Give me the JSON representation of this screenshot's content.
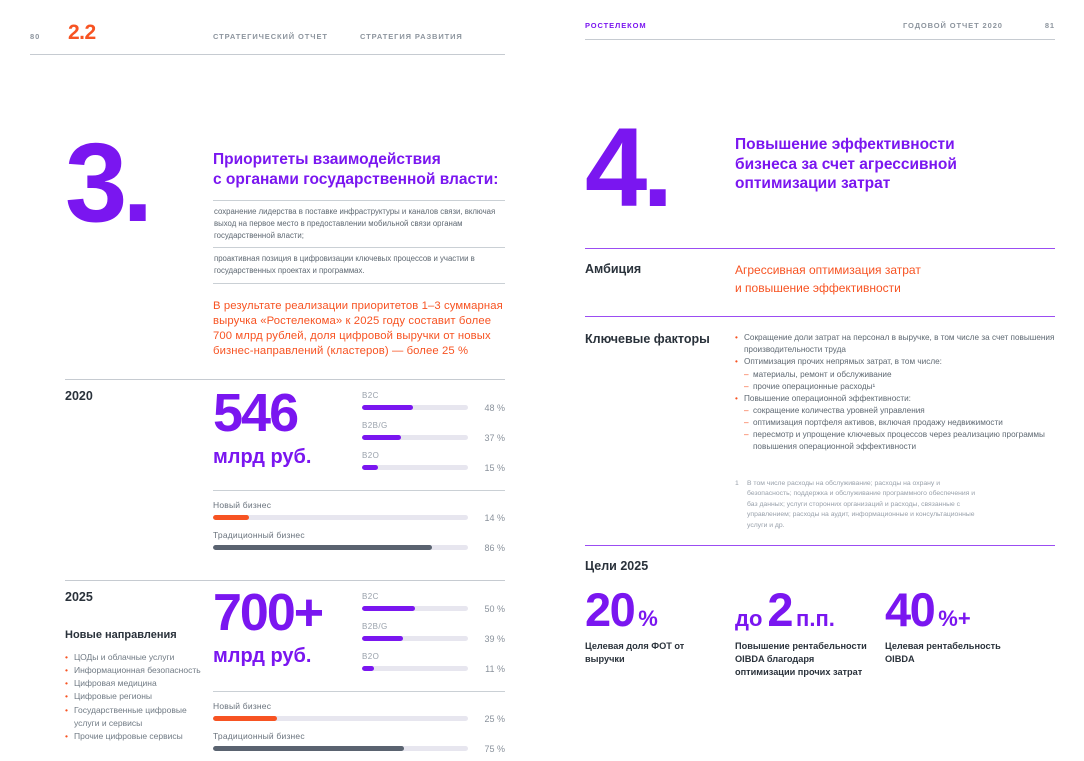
{
  "accent": {
    "purple": "#7A16F0",
    "purple-line": "#9B4DF2",
    "orange": "#F75322",
    "dark": "#2A323B",
    "slate": "#5A6370",
    "track": "#E7E6EF",
    "rule-gray": "#C6CBD1",
    "text-gray": "#5E6872",
    "label-gray": "#99A1AB"
  },
  "left_page": {
    "header": {
      "page_num": "80",
      "section_num": "2.2",
      "crumbs": [
        "СТРАТЕГИЧЕСКИЙ ОТЧЕТ",
        "СТРАТЕГИЯ РАЗВИТИЯ"
      ]
    },
    "priority": {
      "numeral": "3.",
      "title": "Приоритеты взаимодействия\nс органами государственной власти:",
      "items": [
        "сохранение лидерства в поставке инфраструктуры и каналов связи, включая выход на первое место в предоставлении мобильной связи органам государственной власти;",
        "проактивная позиция в цифровизации ключевых процессов и участии в государственных проектах и программах."
      ],
      "result_text": "В результате реализации приоритетов 1–3 суммарная выручка «Ростелекома» к 2025 году составит более 700 млрд рублей, доля цифровой выручки от новых бизнес-направлений (кластеров) — более 25 %"
    },
    "y2020": {
      "label": "2020",
      "value": "546",
      "unit": "млрд руб.",
      "segments": [
        {
          "label": "B2C",
          "pct": 48,
          "value": "48 %",
          "color": "purple"
        },
        {
          "label": "B2B/G",
          "pct": 37,
          "value": "37 %",
          "color": "purple"
        },
        {
          "label": "B2O",
          "pct": 15,
          "value": "15 %",
          "color": "purple"
        }
      ],
      "business": [
        {
          "label": "Новый бизнес",
          "pct": 14,
          "value": "14 %",
          "color": "orange"
        },
        {
          "label": "Традиционный бизнес",
          "pct": 86,
          "value": "86 %",
          "color": "slate"
        }
      ]
    },
    "y2025": {
      "label": "2025",
      "bullet_char": "•",
      "directions_title": "Новые направления",
      "directions": [
        "ЦОДы и облачные услуги",
        "Информационная безопасность",
        "Цифровая медицина",
        "Цифровые регионы",
        "Государственные цифровые услуги и сервисы",
        "Прочие цифровые сервисы"
      ],
      "value": "700+",
      "unit": "млрд руб.",
      "segments": [
        {
          "label": "B2C",
          "pct": 50,
          "value": "50 %",
          "color": "purple"
        },
        {
          "label": "B2B/G",
          "pct": 39,
          "value": "39 %",
          "color": "purple"
        },
        {
          "label": "B2O",
          "pct": 11,
          "value": "11 %",
          "color": "purple"
        }
      ],
      "business": [
        {
          "label": "Новый бизнес",
          "pct": 25,
          "value": "25 %",
          "color": "orange"
        },
        {
          "label": "Традиционный бизнес",
          "pct": 75,
          "value": "75 %",
          "color": "slate"
        }
      ]
    }
  },
  "right_page": {
    "header": {
      "brand": "РОСТЕЛЕКОМ",
      "report": "ГОДОВОЙ ОТЧЕТ 2020",
      "page_num": "81"
    },
    "efficiency": {
      "numeral": "4.",
      "title": "Повышение эффективности\nбизнеса за счет агрессивной\nоптимизации затрат",
      "ambition_label": "Амбиция",
      "ambition_text": "Агрессивная оптимизация затрат\nи повышение эффективности",
      "factors_label": "Ключевые факторы",
      "factors": [
        {
          "marker": "•",
          "kind": "bullet",
          "text": "Сокращение доли затрат на персонал в выручке, в том числе за счет повышения производительности труда"
        },
        {
          "marker": "•",
          "kind": "bullet",
          "text": "Оптимизация прочих непрямых затрат, в том числе:"
        },
        {
          "marker": "–",
          "kind": "dash",
          "text": "материалы, ремонт и обслуживание"
        },
        {
          "marker": "–",
          "kind": "dash",
          "text": "прочие операционные расходы¹"
        },
        {
          "marker": "•",
          "kind": "bullet",
          "text": "Повышение операционной эффективности:"
        },
        {
          "marker": "–",
          "kind": "dash",
          "text": "сокращение количества уровней управления"
        },
        {
          "marker": "–",
          "kind": "dash",
          "text": "оптимизация портфеля активов, включая продажу недвижимости"
        },
        {
          "marker": "–",
          "kind": "dash",
          "text": "пересмотр и упрощение ключевых процессов через реализацию программы повышения операционной эффективности"
        }
      ],
      "footnote_num": "1",
      "footnote": "В том числе расходы на обслуживание; расходы на охрану и безопасность; поддержка и обслуживание программного обеспечения и баз данных; услуги сторонних организаций и расходы, связанные с управлением; расходы на аудит, информационные и консультационные услуги и др."
    },
    "goals": {
      "title": "Цели 2025",
      "items": [
        {
          "prefix": "",
          "value": "20",
          "suffix": "%",
          "label": "Целевая доля ФОТ от выручки"
        },
        {
          "prefix": "до",
          "value": "2",
          "suffix": "п.п.",
          "label": "Повышение рентабельности OIBDA благодаря оптимизации прочих затрат"
        },
        {
          "prefix": "",
          "value": "40",
          "suffix": "%+",
          "label": "Целевая рентабельность OIBDA"
        }
      ]
    }
  },
  "chart_data": [
    {
      "type": "bar",
      "section": "2020",
      "total_label": "546 млрд руб.",
      "categories": [
        "B2C",
        "B2B/G",
        "B2O"
      ],
      "values": [
        48,
        37,
        15
      ],
      "unit": "%",
      "xlim": [
        0,
        100
      ]
    },
    {
      "type": "bar",
      "section": "2020",
      "categories": [
        "Новый бизнес",
        "Традиционный бизнес"
      ],
      "values": [
        14,
        86
      ],
      "unit": "%",
      "xlim": [
        0,
        100
      ]
    },
    {
      "type": "bar",
      "section": "2025",
      "total_label": "700+ млрд руб.",
      "categories": [
        "B2C",
        "B2B/G",
        "B2O"
      ],
      "values": [
        50,
        39,
        11
      ],
      "unit": "%",
      "xlim": [
        0,
        100
      ]
    },
    {
      "type": "bar",
      "section": "2025",
      "categories": [
        "Новый бизнес",
        "Традиционный бизнес"
      ],
      "values": [
        25,
        75
      ],
      "unit": "%",
      "xlim": [
        0,
        100
      ]
    }
  ]
}
